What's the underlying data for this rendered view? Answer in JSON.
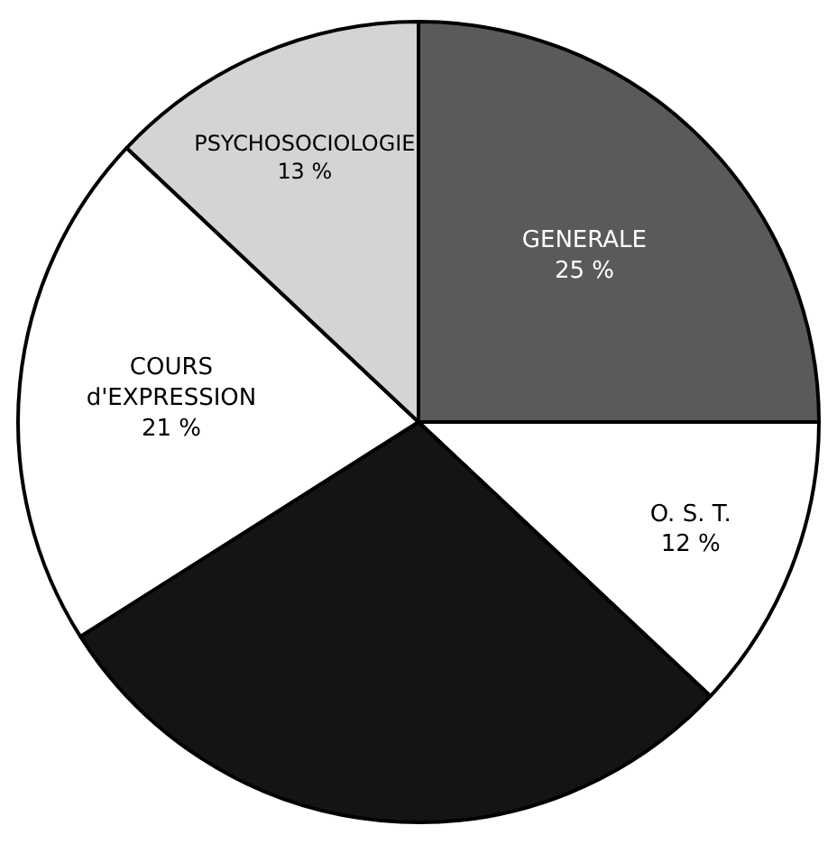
{
  "chart_data": {
    "type": "pie",
    "categories": [
      "GENERALE",
      "O. S. T.",
      null,
      "COURS\nd'EXPRESSION",
      "PSYCHOSOCIOLOGIE"
    ],
    "values": [
      25,
      12,
      29,
      21,
      13
    ],
    "value_labels": [
      "25 %",
      "12 %",
      null,
      "21 %",
      "13 %"
    ],
    "colors": [
      "#5a5a5a",
      "#ffffff",
      "#141414",
      "#ffffff",
      "#d4d4d4"
    ],
    "legend": false
  }
}
